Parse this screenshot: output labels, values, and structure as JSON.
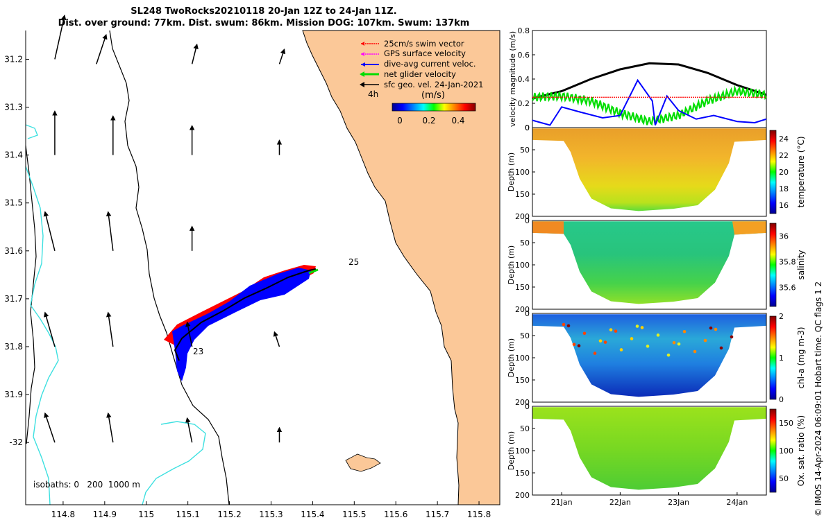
{
  "title": {
    "line1": "SL248 TwoRocks20210118 20-Jan 12Z to 24-Jan 11Z.",
    "line2": "Dist. over ground: 77km. Dist. swum: 86km. Mission DOG: 107km. Swum: 137km"
  },
  "credit": "© IMOS 14-Apr-2024 06:09:01 Hobart time. QC flags 1  2",
  "colors": {
    "land": "#fbc898",
    "coast_lines": "#000000",
    "isobath_cyan": "#3de0e0",
    "track_red": "#ff0000",
    "track_blue": "#0000ff",
    "net_green": "#00dd00"
  },
  "chart_data": [
    {
      "type": "map",
      "xticks": [
        "114.8",
        "114.9",
        "115",
        "115.1",
        "115.2",
        "115.3",
        "115.4",
        "115.5",
        "115.6",
        "115.7",
        "115.8"
      ],
      "yticks": [
        "31.2",
        "31.3",
        "31.4",
        "31.5",
        "31.6",
        "31.7",
        "31.8",
        "31.9",
        "-32"
      ],
      "xlim": [
        114.71,
        115.85
      ],
      "ylim": [
        -32.13,
        -31.14
      ],
      "legend": [
        {
          "label": "25cm/s swim vector",
          "color": "#ff0000"
        },
        {
          "label": "GPS surface velocity",
          "color": "#ff00ff"
        },
        {
          "label": "dive-avg current veloc.",
          "color": "#0000ff"
        },
        {
          "label": "net glider velocity",
          "color": "#00dd00"
        },
        {
          "label": "sfc geo. vel. 24-Jan-2021",
          "color": "#000000"
        }
      ],
      "legend_placement": "top-right",
      "scale_label": "4h",
      "colorbar": {
        "label": "(m/s)",
        "ticks": [
          "0",
          "0.2",
          "0.4"
        ],
        "range": [
          0,
          0.5
        ]
      },
      "annotations": [
        "25",
        "23"
      ],
      "isobath_label": "isobaths: 0   200  1000 m",
      "track": [
        [
          115.06,
          -31.78
        ],
        [
          115.08,
          -31.8
        ],
        [
          115.1,
          -31.76
        ],
        [
          115.15,
          -31.73
        ],
        [
          115.22,
          -31.7
        ],
        [
          115.28,
          -31.67
        ],
        [
          115.34,
          -31.64
        ],
        [
          115.4,
          -31.615
        ]
      ],
      "vectors": [
        {
          "lon": 114.78,
          "lat": -31.2,
          "u": 0.02,
          "v": -0.09
        },
        {
          "lon": 114.88,
          "lat": -31.21,
          "u": 0.02,
          "v": -0.06
        },
        {
          "lon": 115.11,
          "lat": -31.21,
          "u": 0.01,
          "v": -0.04
        },
        {
          "lon": 115.32,
          "lat": -31.21,
          "u": 0.01,
          "v": -0.03
        },
        {
          "lon": 114.78,
          "lat": -31.4,
          "u": 0.0,
          "v": -0.09
        },
        {
          "lon": 114.92,
          "lat": -31.4,
          "u": 0.0,
          "v": -0.08
        },
        {
          "lon": 115.11,
          "lat": -31.4,
          "u": 0.0,
          "v": -0.06
        },
        {
          "lon": 115.32,
          "lat": -31.4,
          "u": 0.0,
          "v": -0.03
        },
        {
          "lon": 114.78,
          "lat": -31.6,
          "u": -0.02,
          "v": -0.08
        },
        {
          "lon": 114.92,
          "lat": -31.6,
          "u": -0.01,
          "v": -0.08
        },
        {
          "lon": 115.11,
          "lat": -31.6,
          "u": 0.0,
          "v": -0.05
        },
        {
          "lon": 114.78,
          "lat": -31.8,
          "u": -0.02,
          "v": -0.07
        },
        {
          "lon": 114.92,
          "lat": -31.8,
          "u": -0.01,
          "v": -0.07
        },
        {
          "lon": 115.11,
          "lat": -31.8,
          "u": -0.01,
          "v": -0.05
        },
        {
          "lon": 115.32,
          "lat": -31.8,
          "u": -0.01,
          "v": -0.03
        },
        {
          "lon": 114.78,
          "lat": -32.0,
          "u": -0.02,
          "v": -0.06
        },
        {
          "lon": 114.92,
          "lat": -32.0,
          "u": -0.01,
          "v": -0.06
        },
        {
          "lon": 115.11,
          "lat": -32.0,
          "u": -0.01,
          "v": -0.05
        },
        {
          "lon": 115.32,
          "lat": -32.0,
          "u": 0.0,
          "v": -0.03
        }
      ]
    },
    {
      "type": "line",
      "ylabel": "velocity magnitude (m/s)",
      "yticks": [
        "0",
        "0.2",
        "0.4",
        "0.6",
        "0.8"
      ],
      "ylim": [
        0,
        0.8
      ],
      "xlim_days": [
        20.5,
        24.5
      ],
      "series": [
        {
          "color": "#000000",
          "x": [
            20.5,
            21,
            21.5,
            22,
            22.5,
            23,
            23.5,
            24,
            24.5
          ],
          "values": [
            0.24,
            0.3,
            0.4,
            0.48,
            0.53,
            0.52,
            0.45,
            0.35,
            0.27
          ]
        },
        {
          "color": "#00dd00",
          "x": [
            20.5,
            21,
            21.5,
            22,
            22.5,
            23,
            23.5,
            24,
            24.5
          ],
          "values": [
            0.25,
            0.26,
            0.22,
            0.12,
            0.05,
            0.1,
            0.22,
            0.3,
            0.27
          ]
        },
        {
          "color": "#0000ff",
          "x": [
            20.5,
            20.8,
            21,
            21.3,
            21.7,
            22,
            22.3,
            22.55,
            22.6,
            22.8,
            23,
            23.3,
            23.6,
            24,
            24.3,
            24.5
          ],
          "values": [
            0.06,
            0.02,
            0.17,
            0.13,
            0.08,
            0.1,
            0.39,
            0.22,
            0.02,
            0.26,
            0.14,
            0.07,
            0.1,
            0.05,
            0.04,
            0.07
          ]
        },
        {
          "color": "#ff0000",
          "x": [
            20.5,
            24.5
          ],
          "values": [
            0.25,
            0.25
          ]
        }
      ]
    },
    {
      "type": "heatmap",
      "variable": "temperature (°C)",
      "ylabel": "Depth (m)",
      "yticks": [
        "0",
        "50",
        "100",
        "150",
        "200"
      ],
      "colorbar_ticks": [
        "16",
        "18",
        "20",
        "22",
        "24"
      ],
      "range": [
        15,
        25
      ]
    },
    {
      "type": "heatmap",
      "variable": "salinity",
      "ylabel": "Depth (m)",
      "yticks": [
        "0",
        "50",
        "100",
        "150",
        "200"
      ],
      "colorbar_ticks": [
        "35.6",
        "35.8",
        "36"
      ],
      "range": [
        35.45,
        36.1
      ]
    },
    {
      "type": "heatmap",
      "variable": "chl-a (mg m-3)",
      "ylabel": "Depth (m)",
      "yticks": [
        "0",
        "50",
        "100",
        "150",
        "200"
      ],
      "colorbar_ticks": [
        "0",
        "1",
        "2"
      ],
      "range": [
        0,
        2
      ]
    },
    {
      "type": "heatmap",
      "variable": "Ox. sat. ratio (%)",
      "ylabel": "Depth (m)",
      "yticks": [
        "0",
        "50",
        "100",
        "150",
        "200"
      ],
      "colorbar_ticks": [
        "50",
        "100",
        "150"
      ],
      "range": [
        25,
        175
      ],
      "xticks": [
        "21Jan",
        "22Jan",
        "23Jan",
        "24Jan"
      ]
    }
  ]
}
